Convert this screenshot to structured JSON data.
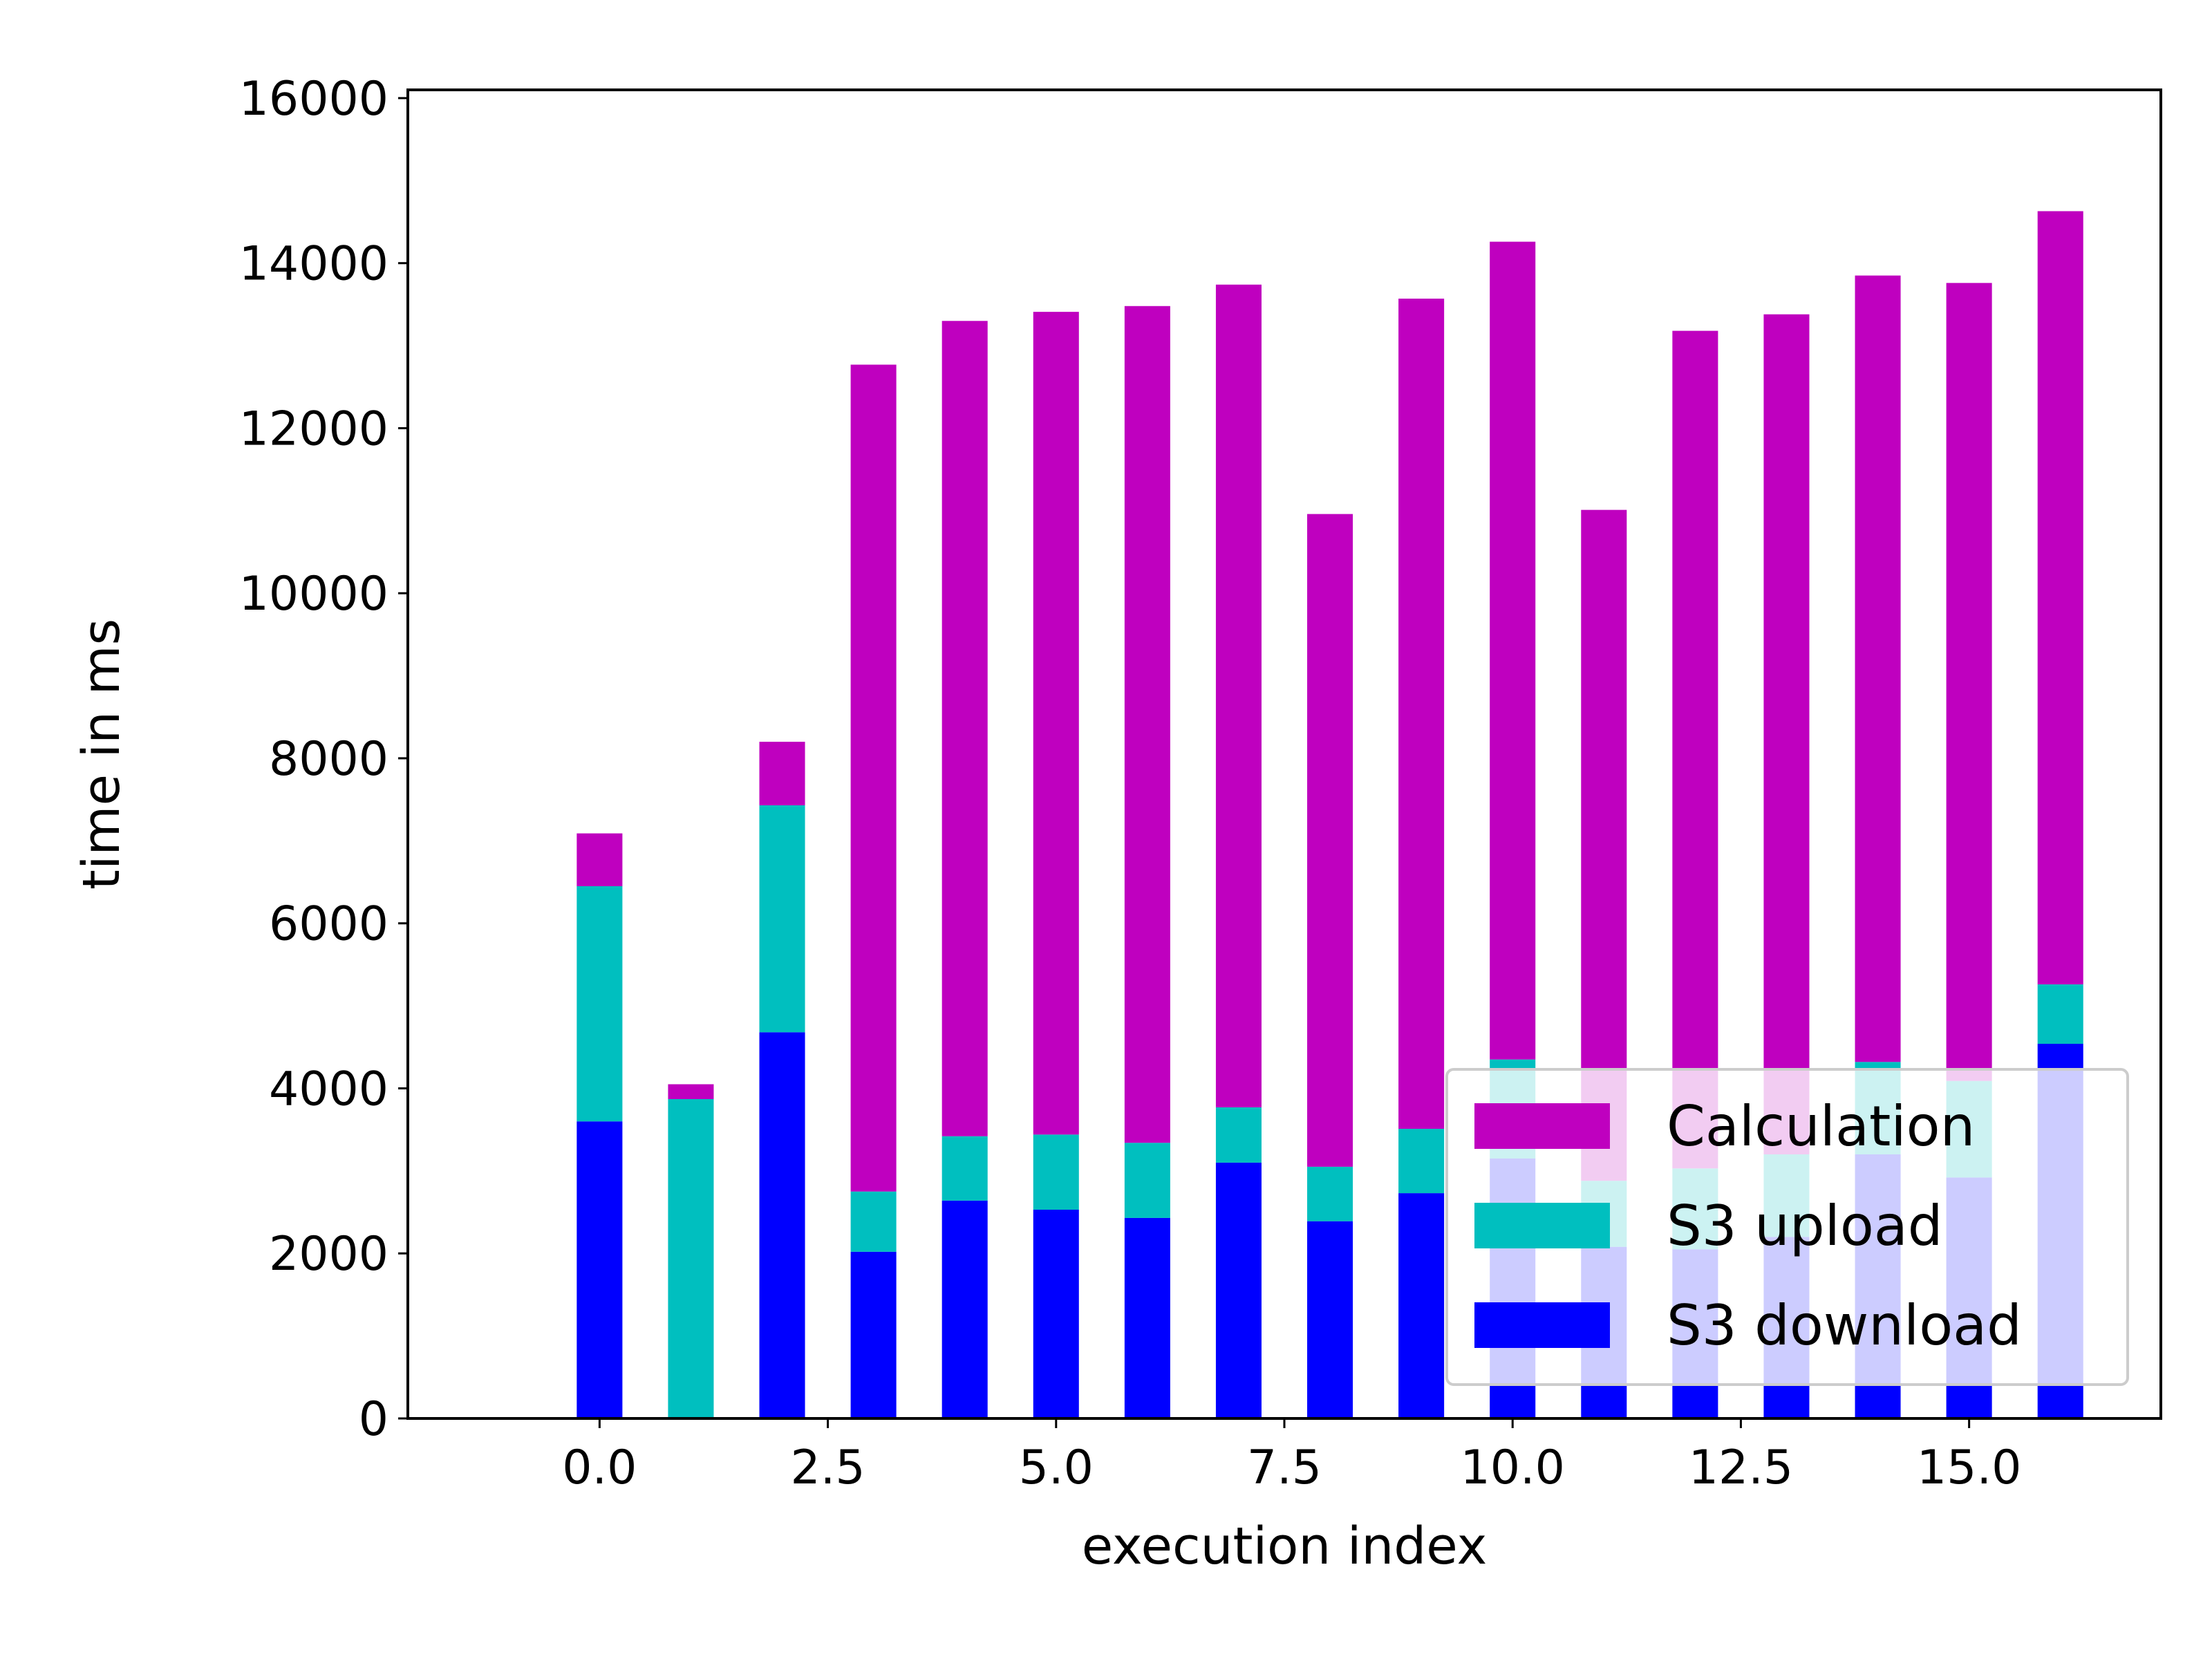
{
  "chart_data": {
    "type": "bar",
    "stacked": true,
    "title": "",
    "xlabel": "execution index",
    "ylabel": "time in ms",
    "xlim": [
      -2.1,
      17.1
    ],
    "ylim": [
      0,
      16100
    ],
    "bar_width": 0.5,
    "xticks": [
      0.0,
      2.5,
      5.0,
      7.5,
      10.0,
      12.5,
      15.0
    ],
    "xtick_labels": [
      "0.0",
      "2.5",
      "5.0",
      "7.5",
      "10.0",
      "12.5",
      "15.0"
    ],
    "yticks": [
      0,
      2000,
      4000,
      6000,
      8000,
      10000,
      12000,
      14000,
      16000
    ],
    "ytick_labels": [
      "0",
      "2000",
      "4000",
      "6000",
      "8000",
      "10000",
      "12000",
      "14000",
      "16000"
    ],
    "grid": false,
    "legend_position": "bottom-right",
    "x": [
      0,
      1,
      2,
      3,
      4,
      5,
      6,
      7,
      8,
      9,
      10,
      11,
      12,
      13,
      14,
      15,
      16
    ],
    "series": [
      {
        "name": "S3 download",
        "color": "#0000ff",
        "values": [
          3600,
          0,
          4680,
          2020,
          2640,
          2530,
          2430,
          3100,
          2390,
          2730,
          3150,
          2080,
          2050,
          2200,
          3200,
          2920,
          4540
        ]
      },
      {
        "name": "S3 upload",
        "color": "#00bfbf",
        "values": [
          2850,
          3870,
          2750,
          730,
          780,
          910,
          910,
          670,
          660,
          780,
          1200,
          800,
          980,
          1000,
          1120,
          1170,
          720
        ]
      },
      {
        "name": "Calculation",
        "color": "#bf00bf",
        "values": [
          640,
          180,
          770,
          10020,
          9880,
          9970,
          10140,
          9970,
          7910,
          10060,
          9910,
          8130,
          10150,
          10180,
          9530,
          9670,
          9370
        ]
      }
    ],
    "legend": [
      {
        "name": "Calculation",
        "color": "#bf00bf"
      },
      {
        "name": "S3 upload",
        "color": "#00bfbf"
      },
      {
        "name": "S3 download",
        "color": "#0000ff"
      }
    ]
  }
}
